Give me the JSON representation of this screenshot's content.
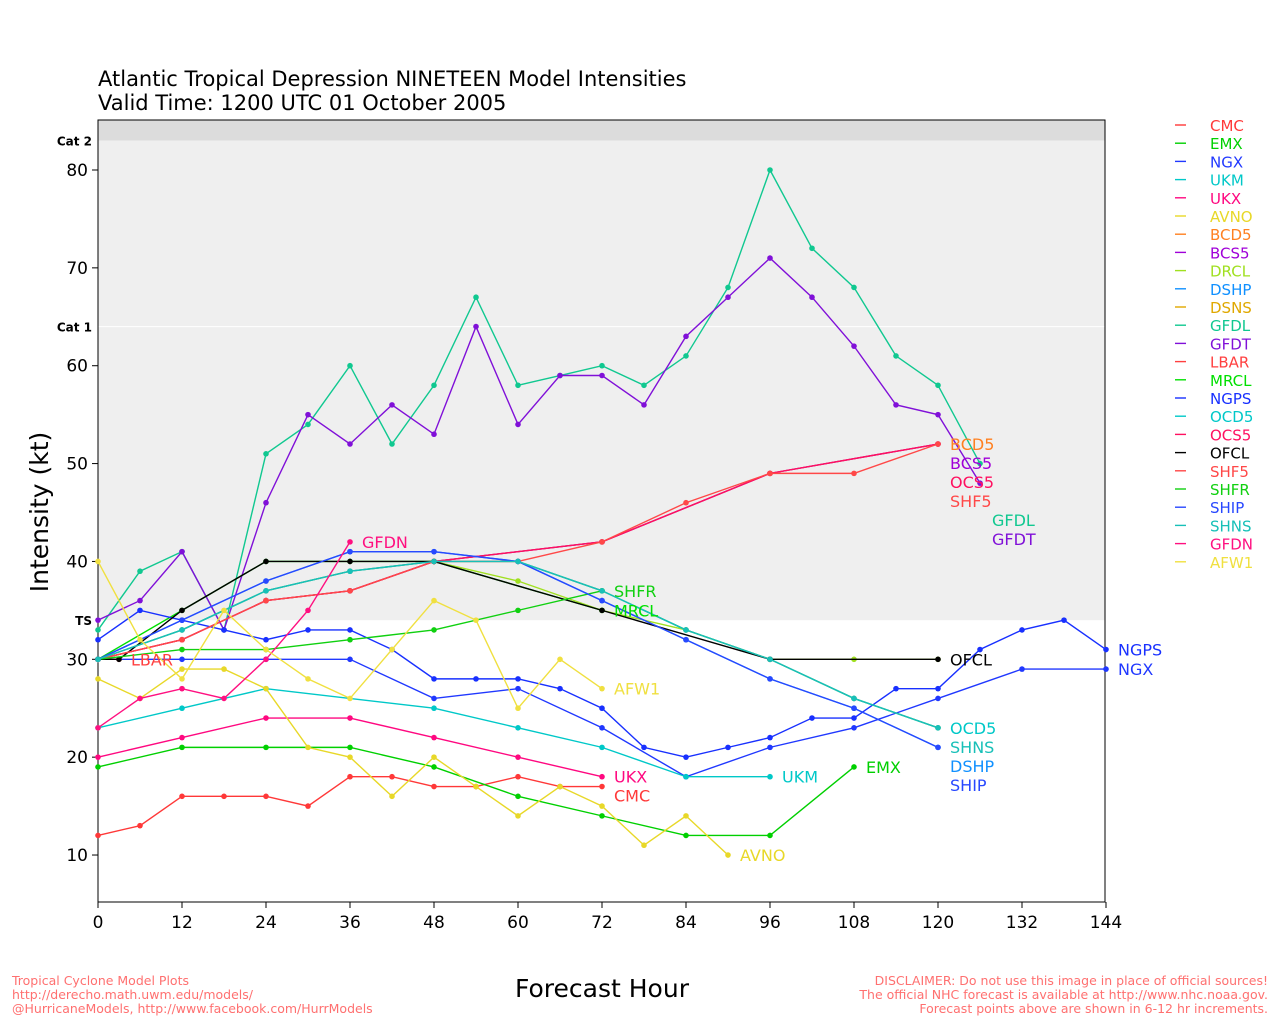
{
  "chart_data": {
    "type": "line",
    "title": "Atlantic Tropical Depression NINETEEN Model Intensities",
    "subtitle": "Valid Time: 1200 UTC 01 October 2005",
    "xlabel": "Forecast Hour",
    "ylabel": "Intensity (kt)",
    "xlim": [
      0,
      144
    ],
    "ylim": [
      5,
      85
    ],
    "xticks": [
      0,
      12,
      24,
      36,
      48,
      60,
      72,
      84,
      96,
      108,
      120,
      132,
      144
    ],
    "yticks": [
      10,
      20,
      30,
      40,
      50,
      60,
      70,
      80
    ],
    "thresholds": [
      {
        "label": "TS",
        "value": 34
      },
      {
        "label": "Cat 1",
        "value": 64
      },
      {
        "label": "Cat 2",
        "value": 83
      }
    ],
    "legend_position": "right",
    "series": [
      {
        "name": "CMC",
        "color": "#ff3838",
        "x": [
          0,
          6,
          12,
          18,
          24,
          30,
          36,
          42,
          48,
          54,
          60,
          66,
          72
        ],
        "y": [
          12,
          13,
          16,
          16,
          16,
          15,
          18,
          18,
          17,
          17,
          18,
          17,
          17
        ],
        "end_label": "CMC"
      },
      {
        "name": "EMX",
        "color": "#00d000",
        "x": [
          0,
          12,
          24,
          36,
          48,
          60,
          72,
          84,
          96,
          108
        ],
        "y": [
          19,
          21,
          21,
          21,
          19,
          16,
          14,
          12,
          12,
          19
        ],
        "end_label": "EMX"
      },
      {
        "name": "NGX",
        "color": "#2038ff",
        "x": [
          0,
          12,
          24,
          36,
          48,
          60,
          72,
          84,
          96,
          108,
          120,
          132,
          144
        ],
        "y": [
          30,
          30,
          30,
          30,
          26,
          27,
          23,
          18,
          21,
          23,
          26,
          29,
          29
        ],
        "end_label": "NGX"
      },
      {
        "name": "UKM",
        "color": "#00c8c8",
        "x": [
          0,
          12,
          24,
          48,
          60,
          72,
          84,
          96
        ],
        "y": [
          23,
          25,
          27,
          25,
          23,
          21,
          18,
          18
        ],
        "end_label": "UKM"
      },
      {
        "name": "UKX",
        "color": "#ff0880",
        "x": [
          0,
          12,
          24,
          36,
          48,
          60,
          72
        ],
        "y": [
          20,
          22,
          24,
          24,
          22,
          20,
          18
        ],
        "end_label": "UKX"
      },
      {
        "name": "AVNO",
        "color": "#e8d828",
        "x": [
          0,
          6,
          12,
          18,
          24,
          30,
          36,
          42,
          48,
          54,
          60,
          66,
          72,
          78,
          84,
          90
        ],
        "y": [
          28,
          26,
          29,
          29,
          27,
          21,
          20,
          16,
          20,
          17,
          14,
          17,
          15,
          11,
          14,
          10
        ],
        "end_label": "AVNO"
      },
      {
        "name": "BCD5",
        "color": "#ff8020",
        "x": [
          0,
          12,
          24,
          36,
          48,
          72,
          96,
          120
        ],
        "y": [
          30,
          32,
          36,
          37,
          40,
          42,
          49,
          52
        ],
        "end_label": "BCD5"
      },
      {
        "name": "BCS5",
        "color": "#a000d8",
        "x": [
          0,
          12,
          24,
          36,
          48,
          72,
          96,
          120
        ],
        "y": [
          30,
          32,
          36,
          37,
          40,
          42,
          49,
          52
        ],
        "end_label": "BCS5"
      },
      {
        "name": "DRCL",
        "color": "#a0e020",
        "x": [
          48,
          60,
          72,
          84,
          96,
          108,
          120
        ],
        "y": [
          40,
          38,
          35,
          33,
          30,
          30,
          30
        ],
        "end_label": ""
      },
      {
        "name": "DSHP",
        "color": "#1090ff",
        "x": [
          0,
          12,
          24,
          36,
          48,
          60,
          72,
          84,
          96,
          108,
          120
        ],
        "y": [
          30,
          34,
          38,
          41,
          41,
          40,
          36,
          32,
          28,
          25,
          21
        ],
        "end_label": "DSHP"
      },
      {
        "name": "DSNS",
        "color": "#e0a800",
        "x": [
          0,
          12,
          24,
          36,
          48,
          60,
          72,
          84,
          96,
          108,
          120
        ],
        "y": [
          30,
          33,
          37,
          39,
          40,
          40,
          37,
          33,
          30,
          26,
          23
        ],
        "end_label": ""
      },
      {
        "name": "GFDL",
        "color": "#10c890",
        "x": [
          0,
          6,
          12,
          18,
          24,
          30,
          36,
          42,
          48,
          54,
          60,
          66,
          72,
          78,
          84,
          90,
          96,
          102,
          108,
          114,
          120,
          126
        ],
        "y": [
          33,
          39,
          41,
          33,
          51,
          54,
          60,
          52,
          58,
          67,
          58,
          59,
          60,
          58,
          61,
          68,
          80,
          72,
          68,
          61,
          58,
          50
        ],
        "end_label": "GFDL"
      },
      {
        "name": "GFDT",
        "color": "#8010d8",
        "x": [
          0,
          6,
          12,
          18,
          24,
          30,
          36,
          42,
          48,
          54,
          60,
          66,
          72,
          78,
          84,
          90,
          96,
          102,
          108,
          114,
          120,
          126
        ],
        "y": [
          34,
          36,
          41,
          33,
          46,
          55,
          52,
          56,
          53,
          64,
          54,
          59,
          59,
          56,
          63,
          67,
          71,
          67,
          62,
          56,
          55,
          48
        ],
        "end_label": "GFDT"
      },
      {
        "name": "LBAR",
        "color": "#ff4040",
        "x": [
          0,
          3
        ],
        "y": [
          30,
          30
        ],
        "end_label": "LBAR"
      },
      {
        "name": "MRCL",
        "color": "#00e000",
        "x": [
          0,
          12,
          24,
          36,
          48,
          72
        ],
        "y": [
          30,
          35,
          40,
          40,
          40,
          35
        ],
        "end_label": "MRCL"
      },
      {
        "name": "NGPS",
        "color": "#1830ff",
        "x": [
          0,
          6,
          12,
          18,
          24,
          30,
          36,
          42,
          48,
          54,
          60,
          66,
          72,
          78,
          84,
          90,
          96,
          102,
          108,
          114,
          120,
          126,
          132,
          138,
          144
        ],
        "y": [
          32,
          35,
          34,
          33,
          32,
          33,
          33,
          31,
          28,
          28,
          28,
          27,
          25,
          21,
          20,
          21,
          22,
          24,
          24,
          27,
          27,
          31,
          33,
          34,
          31
        ],
        "end_label": "NGPS"
      },
      {
        "name": "OCD5",
        "color": "#00c8c8",
        "x": [
          0,
          12,
          24,
          36,
          48,
          60,
          72,
          84,
          96,
          108,
          120
        ],
        "y": [
          30,
          33,
          37,
          39,
          40,
          40,
          37,
          33,
          30,
          26,
          23
        ],
        "end_label": "OCD5"
      },
      {
        "name": "OCS5",
        "color": "#ff1060",
        "x": [
          0,
          12,
          24,
          36,
          48,
          72,
          96,
          120
        ],
        "y": [
          30,
          32,
          36,
          37,
          40,
          42,
          49,
          52
        ],
        "end_label": "OCS5"
      },
      {
        "name": "OFCL",
        "color": "#000000",
        "x": [
          0,
          3,
          12,
          24,
          36,
          48,
          72,
          96,
          120
        ],
        "y": [
          30,
          30,
          35,
          40,
          40,
          40,
          35,
          30,
          30
        ],
        "end_label": "OFCL"
      },
      {
        "name": "SHF5",
        "color": "#ff4848",
        "x": [
          0,
          12,
          24,
          36,
          48,
          60,
          72,
          84,
          96,
          108,
          120
        ],
        "y": [
          30,
          32,
          36,
          37,
          40,
          40,
          42,
          46,
          49,
          49,
          52
        ],
        "end_label": "SHF5"
      },
      {
        "name": "SHFR",
        "color": "#10d010",
        "x": [
          0,
          12,
          24,
          36,
          48,
          60,
          72
        ],
        "y": [
          30,
          31,
          31,
          32,
          33,
          35,
          37
        ],
        "end_label": "SHFR"
      },
      {
        "name": "SHIP",
        "color": "#2848ff",
        "x": [
          0,
          12,
          24,
          36,
          48,
          60,
          72,
          84,
          96,
          108,
          120
        ],
        "y": [
          30,
          34,
          38,
          41,
          41,
          40,
          36,
          32,
          28,
          25,
          21
        ],
        "end_label": "SHIP"
      },
      {
        "name": "SHNS",
        "color": "#18c0b8",
        "x": [
          0,
          12,
          24,
          36,
          48,
          60,
          72,
          84,
          96,
          108,
          120
        ],
        "y": [
          30,
          33,
          37,
          39,
          40,
          40,
          37,
          33,
          30,
          26,
          23
        ],
        "end_label": "SHNS"
      },
      {
        "name": "GFDN",
        "color": "#ff1080",
        "x": [
          0,
          6,
          12,
          18,
          24,
          30,
          36
        ],
        "y": [
          23,
          26,
          27,
          26,
          30,
          35,
          42
        ],
        "end_label": "GFDN"
      },
      {
        "name": "AFW1",
        "color": "#f0e040",
        "x": [
          0,
          6,
          12,
          18,
          24,
          30,
          36,
          42,
          48,
          54,
          60,
          66,
          72
        ],
        "y": [
          40,
          32,
          28,
          35,
          31,
          28,
          26,
          31,
          36,
          34,
          25,
          30,
          27
        ],
        "end_label": "AFW1"
      }
    ]
  },
  "footer": {
    "left": [
      "Tropical Cyclone Model Plots",
      "http://derecho.math.uwm.edu/models/",
      "@HurricaneModels, http://www.facebook.com/HurrModels"
    ],
    "right": [
      "DISCLAIMER: Do not use this image in place of official sources!",
      "The official NHC forecast is available at http://www.nhc.noaa.gov.",
      "Forecast points above are shown in 6-12 hr increments."
    ]
  }
}
